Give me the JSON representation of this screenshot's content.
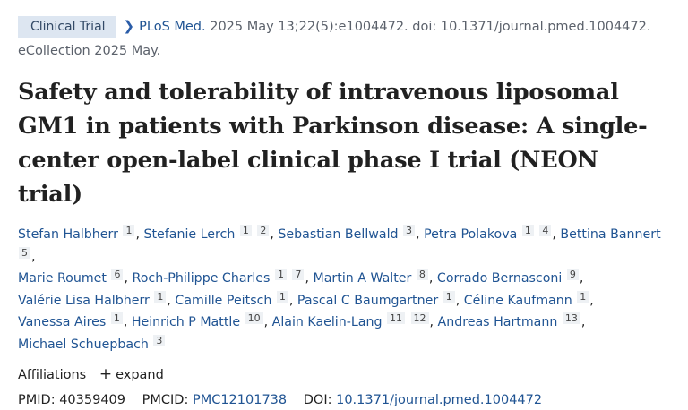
{
  "badge": "Clinical Trial",
  "journal": "PLoS Med.",
  "citation": "2025 May 13;22(5):e1004472. doi: 10.1371/journal.pmed.1004472.",
  "ecollection": "eCollection 2025 May.",
  "title": "Safety and tolerability of intravenous liposomal GM1 in patients with Parkinson disease: A single-center open-label clinical phase I trial (NEON trial)",
  "authors": [
    {
      "name": "Stefan Halbherr",
      "aff": [
        "1"
      ]
    },
    {
      "name": "Stefanie Lerch",
      "aff": [
        "1",
        "2"
      ]
    },
    {
      "name": "Sebastian Bellwald",
      "aff": [
        "3"
      ]
    },
    {
      "name": "Petra Polakova",
      "aff": [
        "1",
        "4"
      ]
    },
    {
      "name": "Bettina Bannert",
      "aff": [
        "5"
      ]
    },
    {
      "name": "Marie Roumet",
      "aff": [
        "6"
      ]
    },
    {
      "name": "Roch-Philippe Charles",
      "aff": [
        "1",
        "7"
      ]
    },
    {
      "name": "Martin A Walter",
      "aff": [
        "8"
      ]
    },
    {
      "name": "Corrado Bernasconi",
      "aff": [
        "9"
      ]
    },
    {
      "name": "Valérie Lisa Halbherr",
      "aff": [
        "1"
      ]
    },
    {
      "name": "Camille Peitsch",
      "aff": [
        "1"
      ]
    },
    {
      "name": "Pascal C Baumgartner",
      "aff": [
        "1"
      ]
    },
    {
      "name": "Céline Kaufmann",
      "aff": [
        "1"
      ]
    },
    {
      "name": "Vanessa Aires",
      "aff": [
        "1"
      ]
    },
    {
      "name": "Heinrich P Mattle",
      "aff": [
        "10"
      ]
    },
    {
      "name": "Alain Kaelin-Lang",
      "aff": [
        "11",
        "12"
      ]
    },
    {
      "name": "Andreas Hartmann",
      "aff": [
        "13"
      ]
    },
    {
      "name": "Michael Schuepbach",
      "aff": [
        "3"
      ]
    }
  ],
  "affiliations": {
    "label": "Affiliations",
    "expand": "expand",
    "expand_icon": "plus-icon"
  },
  "ids": {
    "pmid_label": "PMID:",
    "pmid": "40359409",
    "pmcid_label": "PMCID:",
    "pmcid": "PMC12101738",
    "doi_label": "DOI:",
    "doi": "10.1371/journal.pmed.1004472"
  },
  "colors": {
    "link": "#205493",
    "badge_bg": "#dde6f1",
    "text": "#212121"
  }
}
